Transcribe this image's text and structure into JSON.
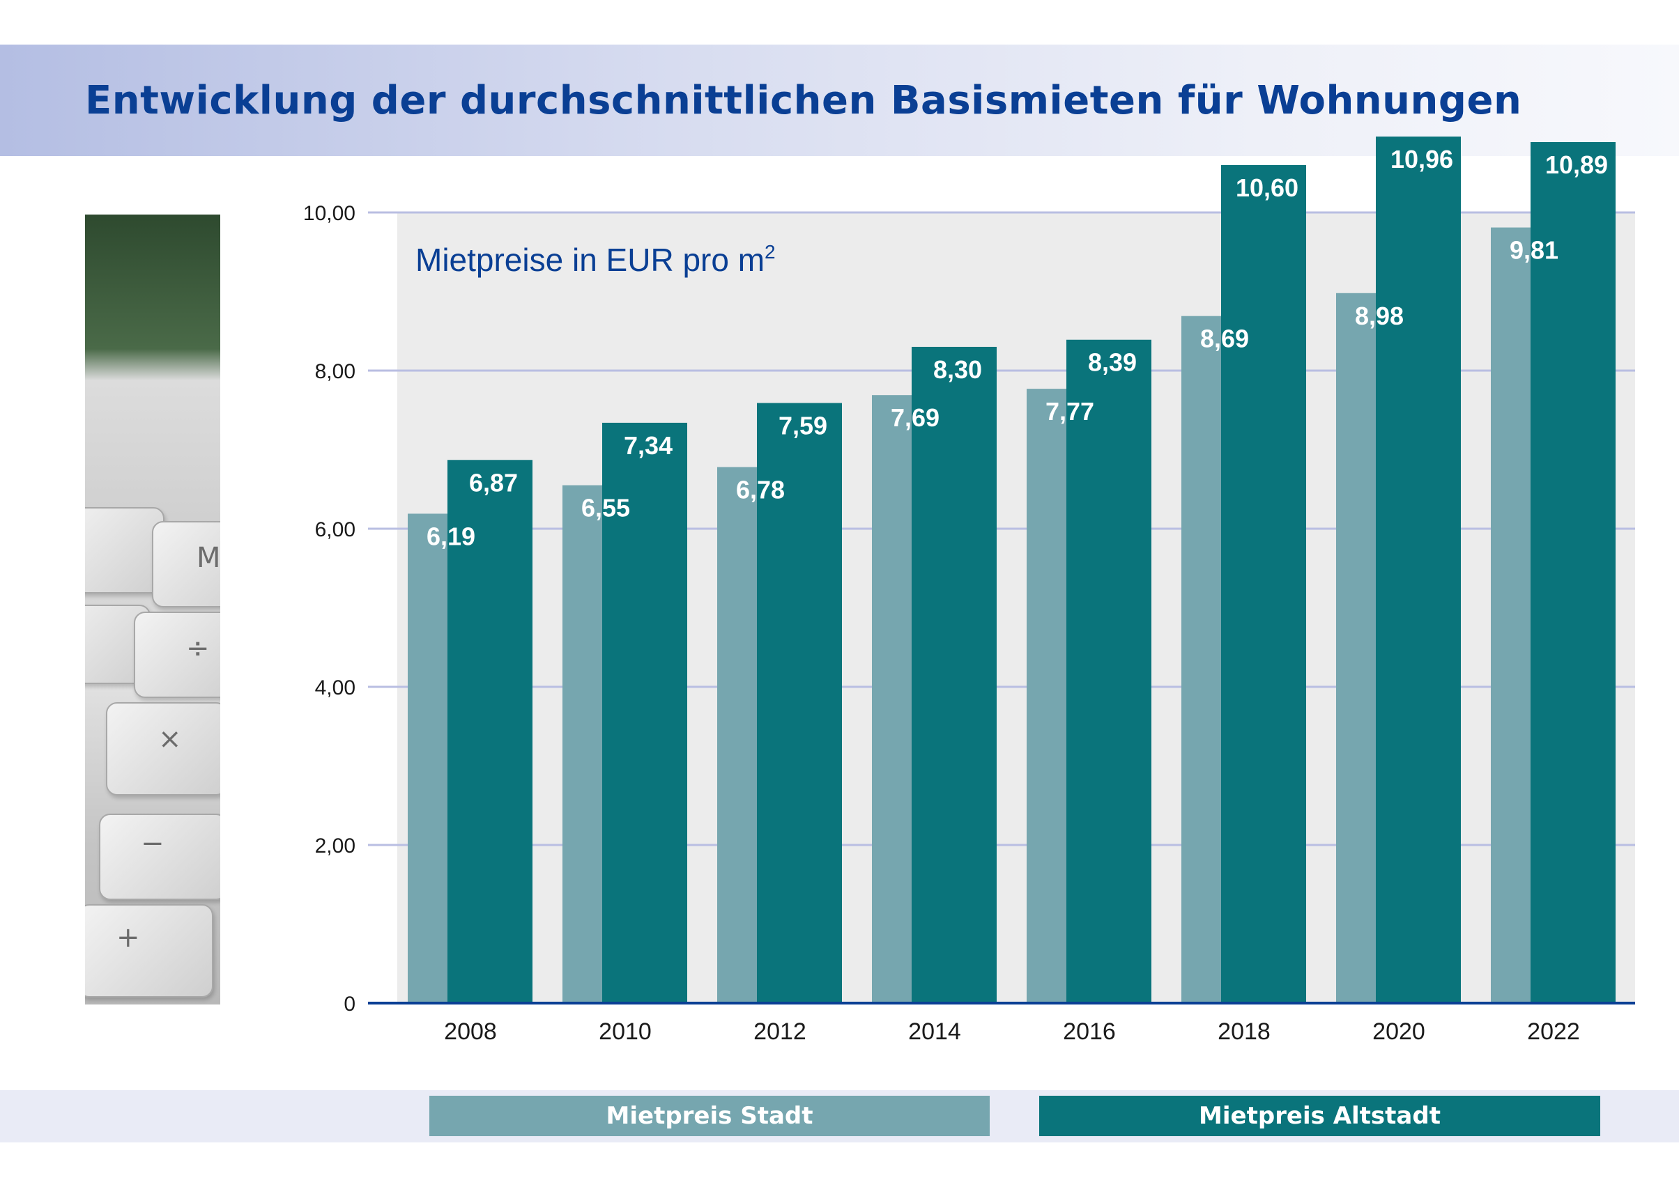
{
  "title": "Entwicklung der durchschnittlichen Basismieten für Wohnungen",
  "unit_label": "Mietpreise in EUR pro m",
  "unit_superscript": "2",
  "colors": {
    "stadt": "#76a6af",
    "altstadt": "#0a747b",
    "title": "#0a3f94"
  },
  "photo": {
    "icon": "calculator-keys-photo"
  },
  "chart_data": {
    "type": "bar",
    "title": "Entwicklung der durchschnittlichen Basismieten für Wohnungen",
    "ylabel": "Mietpreise in EUR pro m2",
    "xlabel": "",
    "categories": [
      "2008",
      "2010",
      "2012",
      "2014",
      "2016",
      "2018",
      "2020",
      "2022"
    ],
    "series": [
      {
        "name": "Mietpreis Stadt",
        "values": [
          6.19,
          6.55,
          6.78,
          7.69,
          7.77,
          8.69,
          8.98,
          9.81
        ],
        "labels": [
          "6,19",
          "6,55",
          "6,78",
          "7,69",
          "7,77",
          "8,69",
          "8,98",
          "9,81"
        ]
      },
      {
        "name": "Mietpreis Altstadt",
        "values": [
          6.87,
          7.34,
          7.59,
          8.3,
          8.39,
          10.6,
          10.96,
          10.89
        ],
        "labels": [
          "6,87",
          "7,34",
          "7,59",
          "8,30",
          "8,39",
          "10,60",
          "10,96",
          "10,89"
        ]
      }
    ],
    "yticks": [
      0,
      2,
      4,
      6,
      8,
      10
    ],
    "ytick_labels": [
      "0",
      "2,00",
      "4,00",
      "6,00",
      "8,00",
      "10,00"
    ],
    "ylim": [
      0,
      10
    ],
    "grid": true,
    "legend": "bottom"
  },
  "legend": {
    "stadt": "Mietpreis Stadt",
    "altstadt": "Mietpreis Altstadt"
  }
}
